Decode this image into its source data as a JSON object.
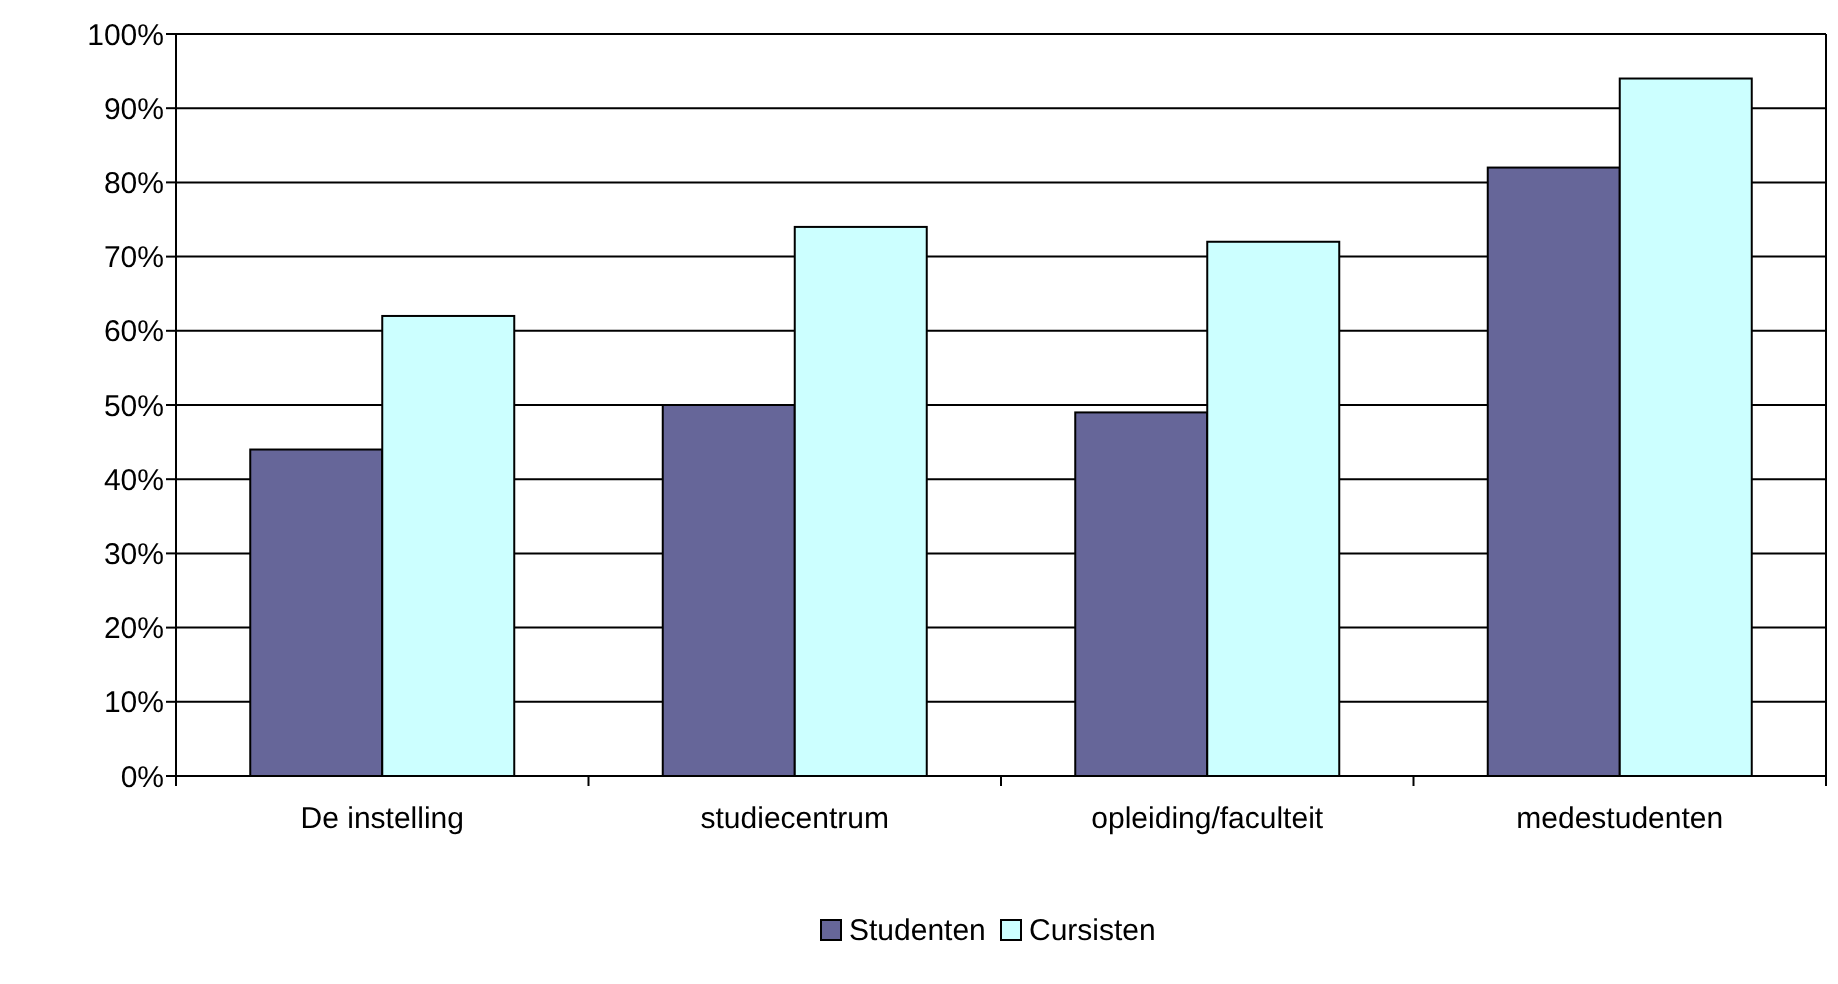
{
  "chart_data": {
    "type": "bar",
    "categories": [
      "De instelling",
      "studiecentrum",
      "opleiding/faculteit",
      "medestudenten"
    ],
    "series": [
      {
        "name": "Studenten",
        "color": "#666699",
        "values": [
          44,
          50,
          49,
          82
        ]
      },
      {
        "name": "Cursisten",
        "color": "#ccffff",
        "values": [
          62,
          74,
          72,
          94
        ]
      }
    ],
    "ylim": [
      0,
      100
    ],
    "yticks": [
      {
        "value": 0,
        "label": "0%"
      },
      {
        "value": 10,
        "label": "10%"
      },
      {
        "value": 20,
        "label": "20%"
      },
      {
        "value": 30,
        "label": "30%"
      },
      {
        "value": 40,
        "label": "40%"
      },
      {
        "value": 50,
        "label": "50%"
      },
      {
        "value": 60,
        "label": "60%"
      },
      {
        "value": 70,
        "label": "70%"
      },
      {
        "value": 80,
        "label": "80%"
      },
      {
        "value": 90,
        "label": "90%"
      },
      {
        "value": 100,
        "label": "100%"
      }
    ],
    "grid": "y",
    "legend": "bottom"
  }
}
